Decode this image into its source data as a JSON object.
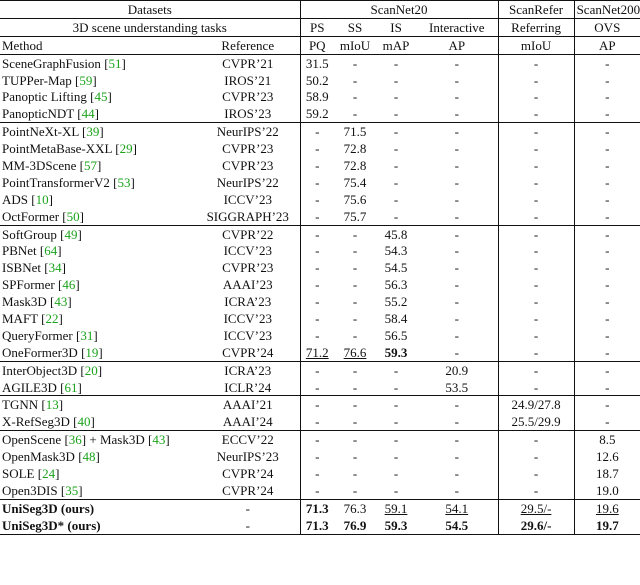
{
  "header": {
    "datasets_label": "Datasets",
    "tasks_label": "3D scene understanding tasks",
    "method_label": "Method",
    "reference_label": "Reference",
    "groups": [
      "ScanNet20",
      "ScanRefer",
      "ScanNet200"
    ],
    "tasks": [
      "PS",
      "SS",
      "IS",
      "Interactive",
      "Referring",
      "OVS"
    ],
    "metrics": [
      "PQ",
      "mIoU",
      "mAP",
      "AP",
      "mIoU",
      "AP"
    ]
  },
  "sections": [
    {
      "rows": [
        {
          "method": "SceneGraphFusion",
          "cite": "51",
          "ref": "CVPR’21",
          "vals": [
            "31.5",
            "-",
            "-",
            "-",
            "-",
            "-"
          ]
        },
        {
          "method": "TUPPer-Map",
          "cite": "59",
          "ref": "IROS’21",
          "vals": [
            "50.2",
            "-",
            "-",
            "-",
            "-",
            "-"
          ]
        },
        {
          "method": "Panoptic Lifting",
          "cite": "45",
          "ref": "CVPR’23",
          "vals": [
            "58.9",
            "-",
            "-",
            "-",
            "-",
            "-"
          ]
        },
        {
          "method": "PanopticNDT",
          "cite": "44",
          "ref": "IROS’23",
          "vals": [
            "59.2",
            "-",
            "-",
            "-",
            "-",
            "-"
          ]
        }
      ]
    },
    {
      "rows": [
        {
          "method": "PointNeXt-XL",
          "cite": "39",
          "ref": "NeurIPS’22",
          "vals": [
            "-",
            "71.5",
            "-",
            "-",
            "-",
            "-"
          ]
        },
        {
          "method": "PointMetaBase-XXL",
          "cite": "29",
          "ref": "CVPR’23",
          "vals": [
            "-",
            "72.8",
            "-",
            "-",
            "-",
            "-"
          ]
        },
        {
          "method": "MM-3DScene",
          "cite": "57",
          "ref": "CVPR’23",
          "vals": [
            "-",
            "72.8",
            "-",
            "-",
            "-",
            "-"
          ]
        },
        {
          "method": "PointTransformerV2",
          "cite": "53",
          "ref": "NeurIPS’22",
          "vals": [
            "-",
            "75.4",
            "-",
            "-",
            "-",
            "-"
          ]
        },
        {
          "method": "ADS",
          "cite": "10",
          "ref": "ICCV’23",
          "vals": [
            "-",
            "75.6",
            "-",
            "-",
            "-",
            "-"
          ]
        },
        {
          "method": "OctFormer",
          "cite": "50",
          "ref": "SIGGRAPH’23",
          "vals": [
            "-",
            "75.7",
            "-",
            "-",
            "-",
            "-"
          ]
        }
      ]
    },
    {
      "rows": [
        {
          "method": "SoftGroup",
          "cite": "49",
          "ref": "CVPR’22",
          "vals": [
            "-",
            "-",
            "45.8",
            "-",
            "-",
            "-"
          ]
        },
        {
          "method": "PBNet",
          "cite": "64",
          "ref": "ICCV’23",
          "vals": [
            "-",
            "-",
            "54.3",
            "-",
            "-",
            "-"
          ]
        },
        {
          "method": "ISBNet",
          "cite": "34",
          "ref": "CVPR’23",
          "vals": [
            "-",
            "-",
            "54.5",
            "-",
            "-",
            "-"
          ]
        },
        {
          "method": "SPFormer",
          "cite": "46",
          "ref": "AAAI’23",
          "vals": [
            "-",
            "-",
            "56.3",
            "-",
            "-",
            "-"
          ]
        },
        {
          "method": "Mask3D",
          "cite": "43",
          "ref": "ICRA’23",
          "vals": [
            "-",
            "-",
            "55.2",
            "-",
            "-",
            "-"
          ]
        },
        {
          "method": "MAFT",
          "cite": "22",
          "ref": "ICCV’23",
          "vals": [
            "-",
            "-",
            "58.4",
            "-",
            "-",
            "-"
          ]
        },
        {
          "method": "QueryFormer",
          "cite": "31",
          "ref": "ICCV’23",
          "vals": [
            "-",
            "-",
            "56.5",
            "-",
            "-",
            "-"
          ]
        },
        {
          "method": "OneFormer3D",
          "cite": "19",
          "ref": "CVPR’24",
          "vals": [
            "71.2",
            "76.6",
            "59.3",
            "-",
            "-",
            "-"
          ],
          "styles": [
            "ul",
            "ul",
            "bold",
            "",
            "",
            ""
          ]
        }
      ]
    },
    {
      "rows": [
        {
          "method": "InterObject3D",
          "cite": "20",
          "ref": "ICRA’23",
          "vals": [
            "-",
            "-",
            "-",
            "20.9",
            "-",
            "-"
          ]
        },
        {
          "method": "AGILE3D",
          "cite": "61",
          "ref": "ICLR’24",
          "vals": [
            "-",
            "-",
            "-",
            "53.5",
            "-",
            "-"
          ]
        }
      ]
    },
    {
      "rows": [
        {
          "method": "TGNN",
          "cite": "13",
          "ref": "AAAI’21",
          "vals": [
            "-",
            "-",
            "-",
            "-",
            "24.9/27.8",
            "-"
          ]
        },
        {
          "method": "X-RefSeg3D",
          "cite": "40",
          "ref": "AAAI’24",
          "vals": [
            "-",
            "-",
            "-",
            "-",
            "25.5/29.9",
            "-"
          ]
        }
      ]
    },
    {
      "rows": [
        {
          "method": "OpenScene",
          "cite": "36",
          "extra": " + Mask3D ",
          "cite2": "43",
          "ref": "ECCV’22",
          "vals": [
            "-",
            "-",
            "-",
            "-",
            "-",
            "8.5"
          ]
        },
        {
          "method": "OpenMask3D",
          "cite": "48",
          "ref": "NeurIPS’23",
          "vals": [
            "-",
            "-",
            "-",
            "-",
            "-",
            "12.6"
          ]
        },
        {
          "method": "SOLE",
          "cite": "24",
          "ref": "CVPR’24",
          "vals": [
            "-",
            "-",
            "-",
            "-",
            "-",
            "18.7"
          ]
        },
        {
          "method": "Open3DIS",
          "cite": "35",
          "ref": "CVPR’24",
          "vals": [
            "-",
            "-",
            "-",
            "-",
            "-",
            "19.0"
          ]
        }
      ]
    },
    {
      "rows": [
        {
          "method": "UniSeg3D",
          "suffix": " (ours)",
          "ref": "-",
          "vals": [
            "71.3",
            "76.3",
            "59.1",
            "54.1",
            "29.5/-",
            "19.6"
          ],
          "styles": [
            "bold",
            "",
            "ul",
            "ul",
            "ul",
            "ul"
          ]
        },
        {
          "method": "UniSeg3D*",
          "suffix": " (ours)",
          "ref": "-",
          "vals": [
            "71.3",
            "76.9",
            "59.3",
            "54.5",
            "29.6/-",
            "19.7"
          ],
          "styles": [
            "bold",
            "bold",
            "bold",
            "bold",
            "bold",
            "bold"
          ]
        }
      ]
    }
  ]
}
